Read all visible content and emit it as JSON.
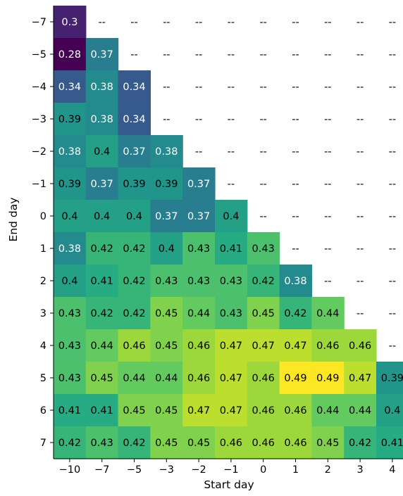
{
  "chart_data": {
    "type": "heatmap",
    "title": "",
    "xlabel": "Start day",
    "ylabel": "End day",
    "x_categories": [
      "−10",
      "−7",
      "−5",
      "−3",
      "−2",
      "−1",
      "0",
      "1",
      "2",
      "3",
      "4"
    ],
    "y_categories": [
      "−7",
      "−5",
      "−4",
      "−3",
      "−2",
      "−1",
      "0",
      "1",
      "2",
      "3",
      "4",
      "5",
      "6",
      "7"
    ],
    "missing_label": "--",
    "colormap": "viridis",
    "color_range": [
      0.28,
      0.49
    ],
    "values": [
      [
        0.3,
        null,
        null,
        null,
        null,
        null,
        null,
        null,
        null,
        null,
        null
      ],
      [
        0.28,
        0.37,
        null,
        null,
        null,
        null,
        null,
        null,
        null,
        null,
        null
      ],
      [
        0.34,
        0.38,
        0.34,
        null,
        null,
        null,
        null,
        null,
        null,
        null,
        null
      ],
      [
        0.39,
        0.38,
        0.34,
        null,
        null,
        null,
        null,
        null,
        null,
        null,
        null
      ],
      [
        0.38,
        0.4,
        0.37,
        0.38,
        null,
        null,
        null,
        null,
        null,
        null,
        null
      ],
      [
        0.39,
        0.37,
        0.39,
        0.39,
        0.37,
        null,
        null,
        null,
        null,
        null,
        null
      ],
      [
        0.4,
        0.4,
        0.4,
        0.37,
        0.37,
        0.4,
        null,
        null,
        null,
        null,
        null
      ],
      [
        0.38,
        0.42,
        0.42,
        0.4,
        0.43,
        0.41,
        0.43,
        null,
        null,
        null,
        null
      ],
      [
        0.4,
        0.41,
        0.42,
        0.43,
        0.43,
        0.43,
        0.42,
        0.38,
        null,
        null,
        null
      ],
      [
        0.43,
        0.42,
        0.42,
        0.45,
        0.44,
        0.43,
        0.45,
        0.42,
        0.44,
        null,
        null
      ],
      [
        0.43,
        0.44,
        0.46,
        0.45,
        0.46,
        0.47,
        0.47,
        0.47,
        0.46,
        0.46,
        null
      ],
      [
        0.43,
        0.45,
        0.44,
        0.44,
        0.46,
        0.47,
        0.46,
        0.49,
        0.49,
        0.47,
        0.39
      ],
      [
        0.41,
        0.41,
        0.45,
        0.45,
        0.47,
        0.47,
        0.46,
        0.46,
        0.44,
        0.44,
        0.4
      ],
      [
        0.42,
        0.43,
        0.42,
        0.45,
        0.45,
        0.46,
        0.46,
        0.46,
        0.45,
        0.42,
        0.41
      ]
    ]
  }
}
